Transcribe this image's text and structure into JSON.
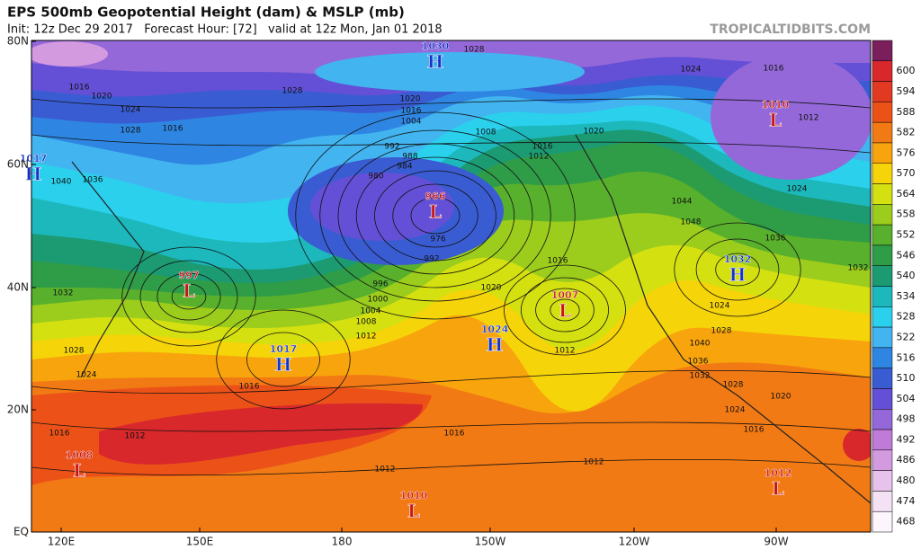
{
  "title": "EPS 500mb Geopotential Height (dam) & MSLP (mb)",
  "subtitle": "Init: 12z Dec 29 2017   Forecast Hour: [72]   valid at 12z Mon, Jan 01 2018",
  "credit": "TROPICALTIDBITS.COM",
  "lat_labels": [
    "80N",
    "60N",
    "40N",
    "20N",
    "EQ"
  ],
  "lon_labels": [
    "120E",
    "150E",
    "180",
    "150W",
    "120W",
    "90W"
  ],
  "colorbar": {
    "levels": [
      600,
      594,
      588,
      582,
      576,
      570,
      564,
      558,
      552,
      546,
      540,
      534,
      528,
      522,
      516,
      510,
      504,
      498,
      492,
      486,
      480,
      474,
      468
    ],
    "colors": [
      "#d8282c",
      "#e23a22",
      "#ec5218",
      "#f27a14",
      "#f8a40c",
      "#f6d40a",
      "#d4e010",
      "#9ccc1c",
      "#58b02c",
      "#2f9c48",
      "#1c9a72",
      "#1cb8bc",
      "#2ad0ec",
      "#42b4f0",
      "#2e86e2",
      "#3a5cd2",
      "#6450d6",
      "#9468d8",
      "#c07ad8",
      "#d49ae0",
      "#e6c2ec",
      "#f4e2f4",
      "#fcf6fc"
    ],
    "top_color": "#7a1e5c"
  },
  "centers": [
    {
      "symbol": "H",
      "pressure": 1030
    },
    {
      "symbol": "H",
      "pressure": 1017
    },
    {
      "symbol": "L",
      "pressure": 966
    },
    {
      "symbol": "L",
      "pressure": 997
    },
    {
      "symbol": "H",
      "pressure": 1017
    },
    {
      "symbol": "H",
      "pressure": 1024
    },
    {
      "symbol": "L",
      "pressure": 1007
    },
    {
      "symbol": "L",
      "pressure": 1010
    },
    {
      "symbol": "H",
      "pressure": 1032
    },
    {
      "symbol": "L",
      "pressure": 1008
    },
    {
      "symbol": "L",
      "pressure": 1010
    },
    {
      "symbol": "L",
      "pressure": 1012
    }
  ],
  "isobar_labels": [
    1028,
    1028,
    1016,
    1020,
    1024,
    1028,
    1016,
    1020,
    1016,
    1004,
    1008,
    992,
    988,
    984,
    980,
    976,
    992,
    996,
    1000,
    1004,
    1008,
    1012,
    1016,
    1012,
    1016,
    1016,
    1012,
    1012,
    1020,
    1016,
    1012,
    1024,
    1028,
    1032,
    1036,
    1040,
    1020,
    1024,
    1016,
    1036,
    1032,
    1024,
    1012,
    1016,
    1024,
    1020,
    1012,
    1016,
    1044,
    1048,
    1040,
    1036,
    1032,
    1028,
    1024,
    1028
  ]
}
